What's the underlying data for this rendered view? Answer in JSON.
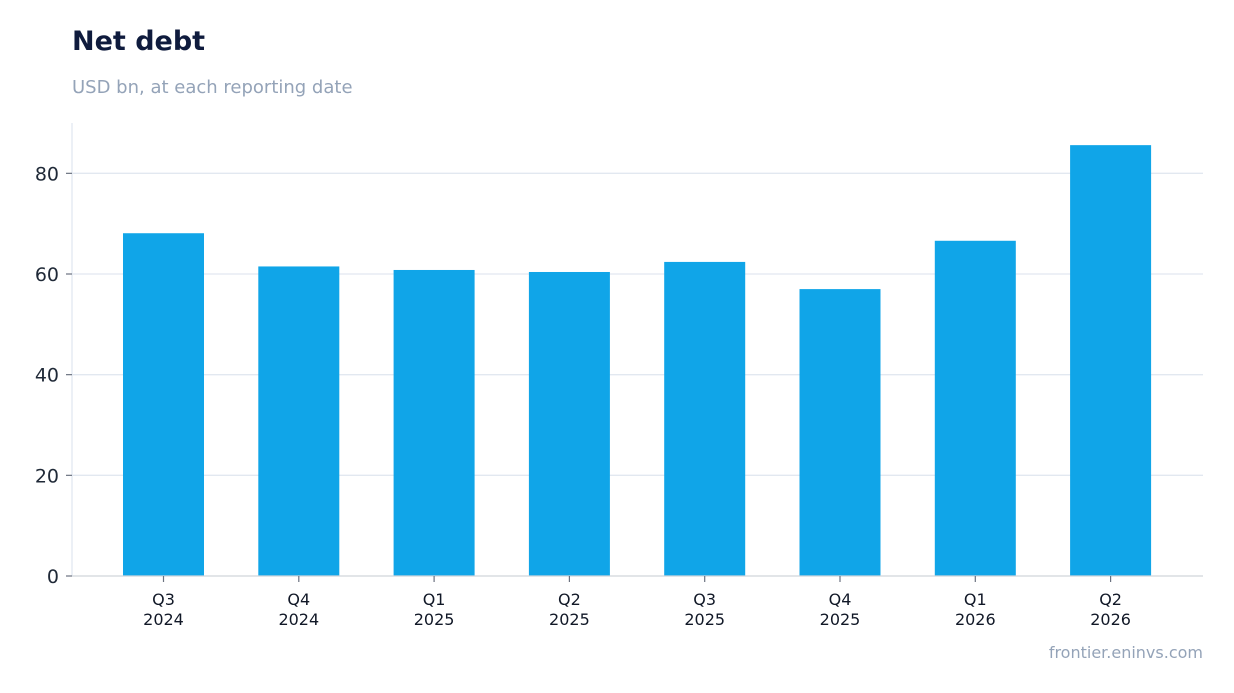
{
  "chart_data": {
    "type": "bar",
    "title": "Net debt",
    "subtitle": "USD bn, at each reporting date",
    "categories": [
      [
        "Q3",
        "2024"
      ],
      [
        "Q4",
        "2024"
      ],
      [
        "Q1",
        "2025"
      ],
      [
        "Q2",
        "2025"
      ],
      [
        "Q3",
        "2025"
      ],
      [
        "Q4",
        "2025"
      ],
      [
        "Q1",
        "2026"
      ],
      [
        "Q2",
        "2026"
      ]
    ],
    "values": [
      68.1,
      61.5,
      60.8,
      60.4,
      62.4,
      57.0,
      66.6,
      85.6
    ],
    "ylim": [
      0,
      90
    ],
    "yticks": [
      0,
      20,
      40,
      60,
      80
    ],
    "grid": "horizontal",
    "legend": "none",
    "colors": {
      "bar": "#10a5e8",
      "grid": "#e2e8f0",
      "axis": "#d1d5db"
    }
  },
  "footer": {
    "source": "frontier.eninvs.com"
  }
}
